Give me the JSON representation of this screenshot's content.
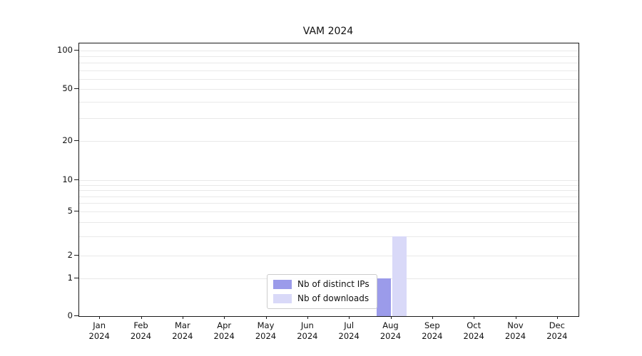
{
  "chart_data": {
    "type": "bar",
    "title": "VAM 2024",
    "categories": [
      "Jan",
      "Feb",
      "Mar",
      "Apr",
      "May",
      "Jun",
      "Jul",
      "Aug",
      "Sep",
      "Oct",
      "Nov",
      "Dec"
    ],
    "year_label": "2024",
    "series": [
      {
        "name": "Nb of distinct IPs",
        "color": "#9b9bea",
        "values": [
          0,
          0,
          0,
          0,
          0,
          0,
          0,
          1,
          0,
          0,
          0,
          0
        ]
      },
      {
        "name": "Nb of downloads",
        "color": "#d9d9f8",
        "values": [
          0,
          0,
          0,
          0,
          0,
          0,
          0,
          3,
          0,
          0,
          0,
          0
        ]
      }
    ],
    "y_ticks": [
      0,
      1,
      2,
      5,
      10,
      20,
      50,
      100
    ],
    "y_scale": "symlog",
    "ylim": [
      0,
      100
    ],
    "grid": "horizontal-minor",
    "legend_position": "lower-center"
  }
}
